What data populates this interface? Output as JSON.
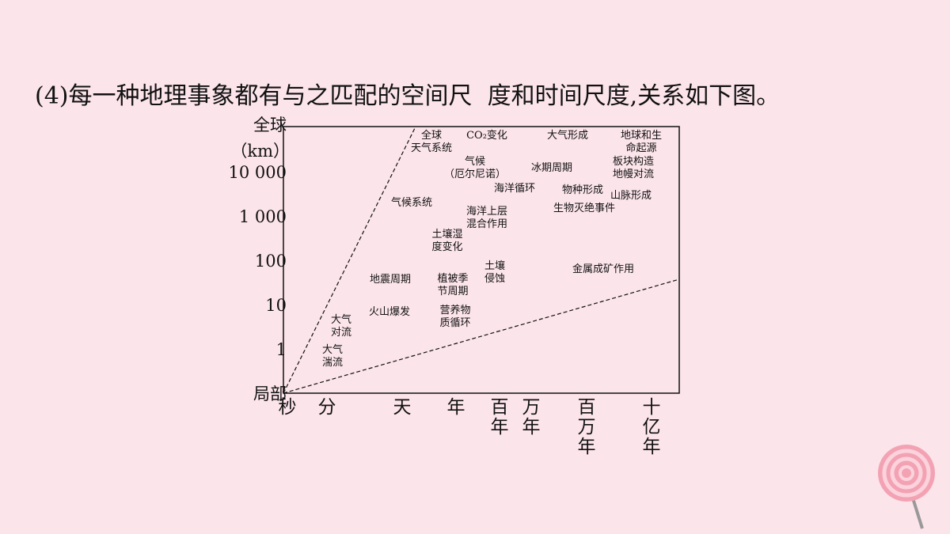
{
  "heading": "(4)每一种地理事象都有与之匹配的空间尺  度和时间尺度,关系如下图。",
  "y_axis": {
    "top": "全球",
    "unit": "（km）",
    "ticks": [
      "10 000",
      "1 000",
      "100",
      "10",
      "1",
      "局部"
    ]
  },
  "x_axis": {
    "ticks": [
      "秒",
      "分",
      "天",
      "年",
      "百年",
      "万年",
      "百万年",
      "十亿年"
    ]
  },
  "phenomena": [
    [
      "全球",
      "天气系统"
    ],
    [
      "CO₂变化"
    ],
    [
      "大气形成"
    ],
    [
      "地球和生",
      "命起源"
    ],
    [
      "气候",
      "（厄尔尼诺）"
    ],
    [
      "冰期周期"
    ],
    [
      "板块构造",
      "地幔对流"
    ],
    [
      "海洋循环"
    ],
    [
      "物种形成"
    ],
    [
      "山脉形成"
    ],
    [
      "生物灭绝事件"
    ],
    [
      "气候系统"
    ],
    [
      "海洋上层",
      "混合作用"
    ],
    [
      "土壤湿",
      "度变化"
    ],
    [
      "土壤",
      "侵蚀"
    ],
    [
      "地震周期"
    ],
    [
      "植被季",
      "节周期"
    ],
    [
      "金属成矿作用"
    ],
    [
      "火山爆发"
    ],
    [
      "营养物",
      "质循环"
    ],
    [
      "大气",
      "对流"
    ],
    [
      "大气",
      "湍流"
    ]
  ]
}
